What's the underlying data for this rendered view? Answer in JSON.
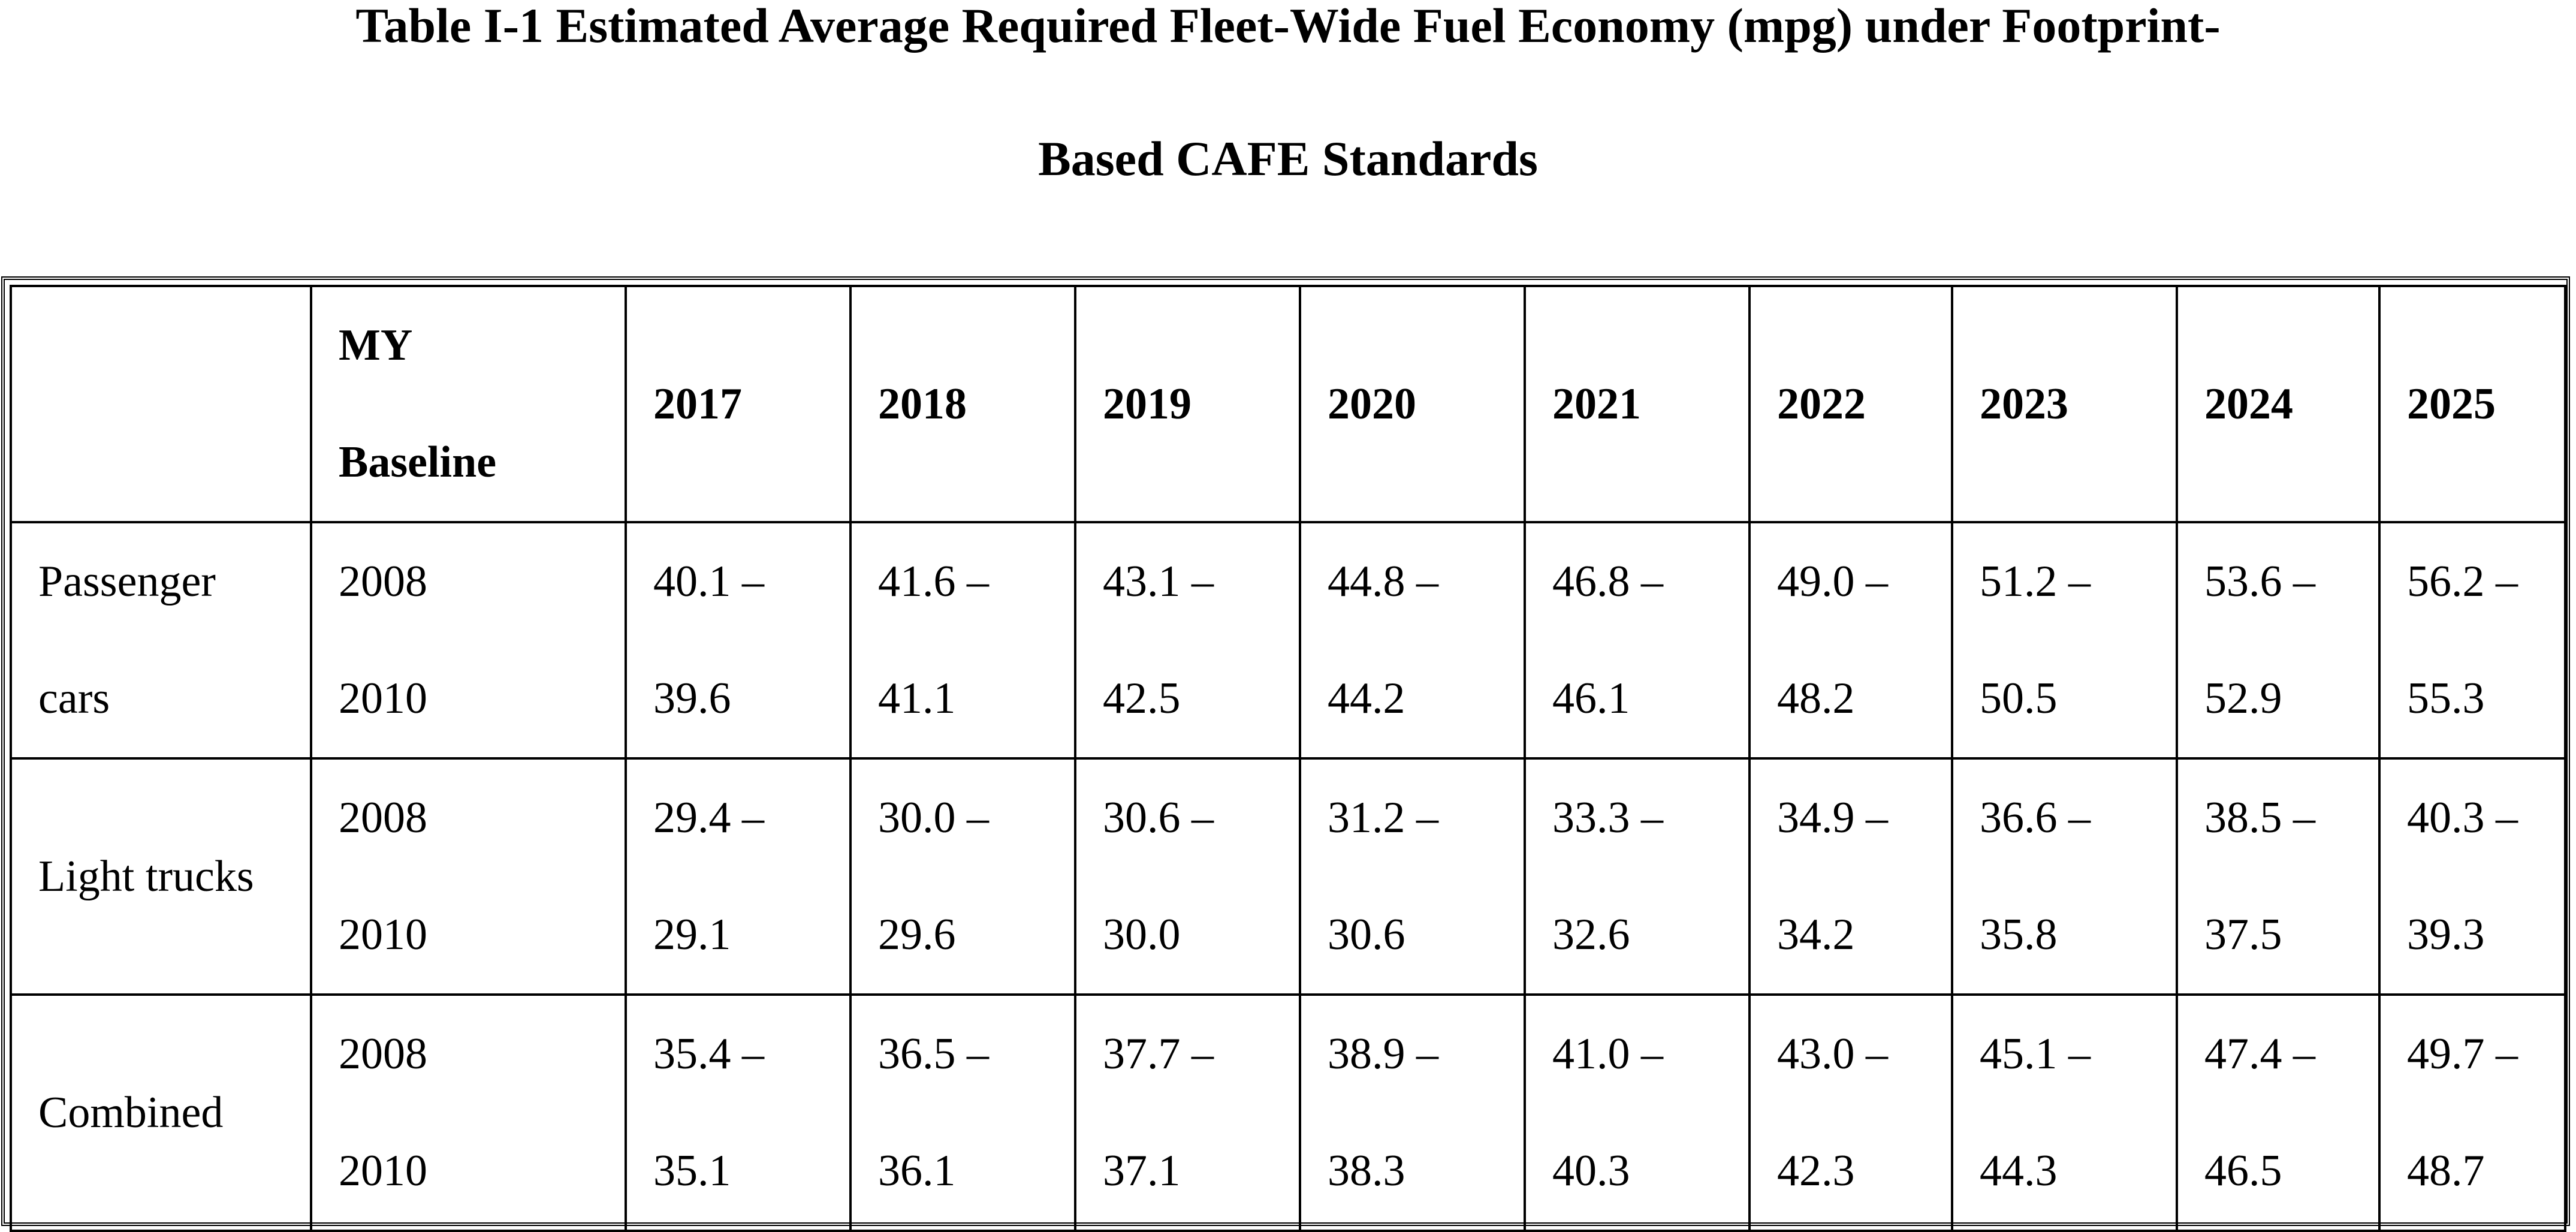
{
  "title": {
    "line1": "Table I-1 Estimated Average Required Fleet-Wide Fuel Economy (mpg) under Footprint-",
    "line2": "Based CAFE Standards"
  },
  "table": {
    "header": {
      "empty": "",
      "baseline_line1": "MY",
      "baseline_line2": "Baseline",
      "years": [
        "2017",
        "2018",
        "2019",
        "2020",
        "2021",
        "2022",
        "2023",
        "2024",
        "2025"
      ]
    },
    "rows": [
      {
        "label_line1": "Passenger",
        "label_line2": "cars",
        "baseline_line1": "2008",
        "baseline_line2": "2010",
        "cells": [
          {
            "line1": "40.1 –",
            "line2": "39.6"
          },
          {
            "line1": "41.6 –",
            "line2": "41.1"
          },
          {
            "line1": "43.1 –",
            "line2": "42.5"
          },
          {
            "line1": "44.8 –",
            "line2": "44.2"
          },
          {
            "line1": "46.8 –",
            "line2": "46.1"
          },
          {
            "line1": "49.0 –",
            "line2": "48.2"
          },
          {
            "line1": "51.2 –",
            "line2": "50.5"
          },
          {
            "line1": "53.6 –",
            "line2": "52.9"
          },
          {
            "line1": "56.2 –",
            "line2": "55.3"
          }
        ]
      },
      {
        "label": "Light trucks",
        "baseline_line1": "2008",
        "baseline_line2": "2010",
        "cells": [
          {
            "line1": "29.4 –",
            "line2": "29.1"
          },
          {
            "line1": "30.0 –",
            "line2": "29.6"
          },
          {
            "line1": "30.6 –",
            "line2": "30.0"
          },
          {
            "line1": "31.2 –",
            "line2": "30.6"
          },
          {
            "line1": "33.3 –",
            "line2": "32.6"
          },
          {
            "line1": "34.9 –",
            "line2": "34.2"
          },
          {
            "line1": "36.6 –",
            "line2": "35.8"
          },
          {
            "line1": "38.5 –",
            "line2": "37.5"
          },
          {
            "line1": "40.3 –",
            "line2": "39.3"
          }
        ]
      },
      {
        "label": "Combined",
        "baseline_line1": "2008",
        "baseline_line2": "2010",
        "cells": [
          {
            "line1": "35.4 –",
            "line2": "35.1"
          },
          {
            "line1": "36.5 –",
            "line2": "36.1"
          },
          {
            "line1": "37.7 –",
            "line2": "37.1"
          },
          {
            "line1": "38.9 –",
            "line2": "38.3"
          },
          {
            "line1": "41.0 –",
            "line2": "40.3"
          },
          {
            "line1": "43.0 –",
            "line2": "42.3"
          },
          {
            "line1": "45.1 –",
            "line2": "44.3"
          },
          {
            "line1": "47.4 –",
            "line2": "46.5"
          },
          {
            "line1": "49.7 –",
            "line2": "48.7"
          }
        ]
      }
    ]
  }
}
